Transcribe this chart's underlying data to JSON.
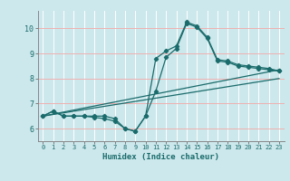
{
  "xlabel": "Humidex (Indice chaleur)",
  "bg_color": "#cce8ec",
  "line_color": "#1a6b6b",
  "grid_color_white": "#ffffff",
  "grid_color_pink": "#f0b0b0",
  "xlim": [
    -0.5,
    23.5
  ],
  "ylim": [
    5.5,
    10.7
  ],
  "yticks": [
    6,
    7,
    8,
    9,
    10
  ],
  "xticks": [
    0,
    1,
    2,
    3,
    4,
    5,
    6,
    7,
    8,
    9,
    10,
    11,
    12,
    13,
    14,
    15,
    16,
    17,
    18,
    19,
    20,
    21,
    22,
    23
  ],
  "curve1_x": [
    0,
    1,
    2,
    3,
    4,
    5,
    6,
    7,
    8,
    9,
    10,
    11,
    12,
    13,
    14,
    15,
    16,
    17,
    18,
    19,
    20,
    21,
    22,
    23
  ],
  "curve1_y": [
    6.5,
    6.7,
    6.5,
    6.5,
    6.5,
    6.5,
    6.5,
    6.4,
    6.0,
    5.9,
    6.5,
    8.8,
    9.1,
    9.3,
    10.25,
    10.1,
    9.65,
    8.75,
    8.7,
    8.55,
    8.5,
    8.45,
    8.4,
    8.3
  ],
  "curve2_x": [
    0,
    1,
    2,
    3,
    4,
    5,
    6,
    7,
    8,
    9,
    10,
    11,
    12,
    13,
    14,
    15,
    16,
    17,
    18,
    19,
    20,
    21,
    22,
    23
  ],
  "curve2_y": [
    6.5,
    6.7,
    6.5,
    6.5,
    6.5,
    6.45,
    6.4,
    6.3,
    6.0,
    5.9,
    6.5,
    7.5,
    8.85,
    9.2,
    10.2,
    10.05,
    9.6,
    8.7,
    8.65,
    8.5,
    8.45,
    8.4,
    8.35,
    8.3
  ],
  "line1_x": [
    0,
    23
  ],
  "line1_y": [
    6.5,
    8.35
  ],
  "line2_x": [
    0,
    23
  ],
  "line2_y": [
    6.5,
    8.0
  ]
}
